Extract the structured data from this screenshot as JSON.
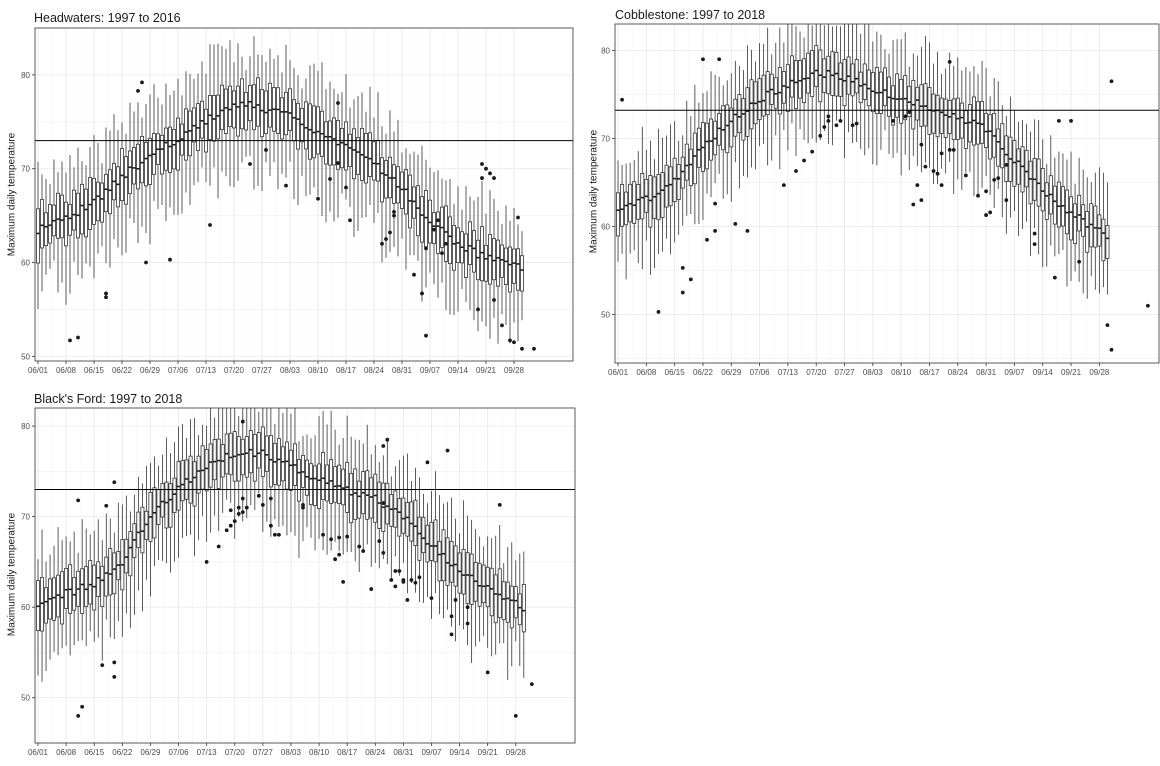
{
  "chart_data": [
    {
      "type": "box",
      "title": "Headwaters:  1997 to 2016",
      "ylabel": "Maximum daily temperature",
      "xlabel": "",
      "x_tick_labels": [
        "06/01",
        "06/08",
        "06/15",
        "06/22",
        "06/29",
        "07/06",
        "07/13",
        "07/20",
        "07/27",
        "08/03",
        "08/10",
        "08/17",
        "08/24",
        "08/31",
        "09/07",
        "09/14",
        "09/21",
        "09/28"
      ],
      "y_ticks": [
        50,
        60,
        70,
        80
      ],
      "ylim": [
        49.5,
        85
      ],
      "reference_line": 73,
      "grid": true,
      "days": 122,
      "median_profile": {
        "x_day": [
          0,
          7,
          14,
          21,
          28,
          35,
          42,
          49,
          56,
          63,
          70,
          77,
          84,
          91,
          98,
          105,
          112,
          121
        ],
        "median": [
          63.5,
          64.5,
          66.5,
          69,
          71.5,
          73,
          75,
          77,
          76.5,
          75.5,
          74,
          72.5,
          70.5,
          68,
          64.5,
          62,
          60.5,
          59.5
        ]
      },
      "outliers": [
        [
          8,
          51.7
        ],
        [
          10,
          52
        ],
        [
          17,
          56.3
        ],
        [
          17,
          56.7
        ],
        [
          25,
          78.3
        ],
        [
          26,
          79.2
        ],
        [
          27,
          60
        ],
        [
          33,
          60.3
        ],
        [
          43,
          64
        ],
        [
          53,
          70.5
        ],
        [
          57,
          72
        ],
        [
          62,
          68.2
        ],
        [
          70,
          66.8
        ],
        [
          73,
          68.9
        ],
        [
          75,
          70.6
        ],
        [
          75,
          77
        ],
        [
          77,
          68
        ],
        [
          78,
          64.5
        ],
        [
          86,
          62
        ],
        [
          87,
          62.5
        ],
        [
          88,
          63.2
        ],
        [
          89,
          65
        ],
        [
          89,
          65.4
        ],
        [
          94,
          58.7
        ],
        [
          96,
          56.7
        ],
        [
          97,
          52.2
        ],
        [
          97,
          61.5
        ],
        [
          99,
          63.5
        ],
        [
          100,
          64.5
        ],
        [
          101,
          61
        ],
        [
          102,
          62
        ],
        [
          110,
          55
        ],
        [
          111,
          69
        ],
        [
          111,
          70.5
        ],
        [
          112,
          70
        ],
        [
          113,
          69.5
        ],
        [
          114,
          69
        ],
        [
          114,
          56
        ],
        [
          116,
          53.3
        ],
        [
          118,
          51.7
        ],
        [
          119,
          51.5
        ],
        [
          120,
          64.8
        ],
        [
          121,
          50.8
        ],
        [
          124,
          50.8
        ]
      ]
    },
    {
      "type": "box",
      "title": "Cobblestone:  1997 to 2018",
      "ylabel": "Maximum daily temperature",
      "xlabel": "",
      "x_tick_labels": [
        "06/01",
        "06/08",
        "06/15",
        "06/22",
        "06/29",
        "07/06",
        "07/13",
        "07/20",
        "07/27",
        "08/03",
        "08/10",
        "08/17",
        "08/24",
        "08/31",
        "09/07",
        "09/14",
        "09/21",
        "09/28"
      ],
      "y_ticks": [
        50,
        60,
        70,
        80
      ],
      "ylim": [
        44.5,
        83
      ],
      "reference_line": 73.2,
      "grid": true,
      "days": 122,
      "median_profile": {
        "x_day": [
          0,
          7,
          14,
          21,
          28,
          35,
          42,
          49,
          56,
          63,
          70,
          77,
          84,
          91,
          98,
          105,
          112,
          121
        ],
        "median": [
          62,
          63,
          65,
          69,
          72,
          74.5,
          76,
          77.5,
          77,
          75.5,
          74.5,
          73.5,
          72.5,
          71,
          67.5,
          64,
          61.5,
          59
        ]
      },
      "outliers": [
        [
          1,
          74.4
        ],
        [
          10,
          50.3
        ],
        [
          16,
          52.5
        ],
        [
          16,
          55.3
        ],
        [
          18,
          54
        ],
        [
          21,
          79
        ],
        [
          22,
          58.5
        ],
        [
          24,
          62.6
        ],
        [
          24,
          59.5
        ],
        [
          25,
          79
        ],
        [
          29,
          60.3
        ],
        [
          32,
          59.5
        ],
        [
          41,
          64.7
        ],
        [
          44,
          66.3
        ],
        [
          46,
          67.5
        ],
        [
          48,
          68.5
        ],
        [
          50,
          70.3
        ],
        [
          51,
          71.3
        ],
        [
          52,
          72
        ],
        [
          52,
          72.5
        ],
        [
          54,
          71.5
        ],
        [
          55,
          72
        ],
        [
          58,
          71.5
        ],
        [
          59,
          71.7
        ],
        [
          68,
          72
        ],
        [
          71,
          72.5
        ],
        [
          72,
          73
        ],
        [
          73,
          62.5
        ],
        [
          74,
          64.7
        ],
        [
          75,
          63
        ],
        [
          75,
          69.3
        ],
        [
          76,
          66.8
        ],
        [
          78,
          66.3
        ],
        [
          79,
          66
        ],
        [
          80,
          64.7
        ],
        [
          80,
          68.3
        ],
        [
          82,
          68.7
        ],
        [
          82,
          78.7
        ],
        [
          83,
          68.7
        ],
        [
          86,
          65.8
        ],
        [
          89,
          63.5
        ],
        [
          91,
          61.3
        ],
        [
          91,
          64
        ],
        [
          92,
          61.6
        ],
        [
          93,
          65.3
        ],
        [
          94,
          65.5
        ],
        [
          96,
          63
        ],
        [
          96,
          67
        ],
        [
          103,
          58
        ],
        [
          103,
          59.2
        ],
        [
          108,
          54.2
        ],
        [
          109,
          72
        ],
        [
          112,
          72
        ],
        [
          114,
          56
        ],
        [
          121,
          48.8
        ],
        [
          122,
          46
        ],
        [
          122,
          76.5
        ],
        [
          131,
          51
        ]
      ]
    },
    {
      "type": "box",
      "title": "Black's Ford:  1997 to 2018",
      "ylabel": "Maximum daily temperature",
      "xlabel": "",
      "x_tick_labels": [
        "06/01",
        "06/08",
        "06/15",
        "06/22",
        "06/29",
        "07/06",
        "07/13",
        "07/20",
        "07/27",
        "08/03",
        "08/10",
        "08/17",
        "08/24",
        "08/31",
        "09/07",
        "09/14",
        "09/21",
        "09/28"
      ],
      "y_ticks": [
        50,
        60,
        70,
        80
      ],
      "ylim": [
        45,
        82
      ],
      "reference_line": 73,
      "grid": true,
      "days": 122,
      "median_profile": {
        "x_day": [
          0,
          7,
          14,
          21,
          28,
          35,
          42,
          49,
          56,
          63,
          70,
          77,
          84,
          91,
          98,
          105,
          112,
          121
        ],
        "median": [
          60,
          61.5,
          62.5,
          65,
          70,
          73,
          75.5,
          77,
          77,
          75.5,
          74,
          73,
          72,
          70,
          67,
          64,
          62,
          60
        ]
      },
      "outliers": [
        [
          10,
          48
        ],
        [
          11,
          49
        ],
        [
          10,
          71.8
        ],
        [
          17,
          71.2
        ],
        [
          16,
          53.6
        ],
        [
          19,
          53.9
        ],
        [
          19,
          52.3
        ],
        [
          19,
          73.8
        ],
        [
          42,
          65
        ],
        [
          45,
          66.7
        ],
        [
          47,
          68.5
        ],
        [
          48,
          69
        ],
        [
          48,
          70.7
        ],
        [
          49,
          69.5
        ],
        [
          50,
          70.3
        ],
        [
          50,
          71
        ],
        [
          51,
          70.5
        ],
        [
          51,
          72
        ],
        [
          51,
          80.5
        ],
        [
          52,
          71
        ],
        [
          55,
          72.3
        ],
        [
          56,
          71.3
        ],
        [
          58,
          69
        ],
        [
          58,
          72
        ],
        [
          59,
          68
        ],
        [
          60,
          68
        ],
        [
          66,
          71
        ],
        [
          66,
          71.3
        ],
        [
          71,
          68
        ],
        [
          73,
          67.5
        ],
        [
          74,
          65.3
        ],
        [
          75,
          65.8
        ],
        [
          75,
          67.7
        ],
        [
          76,
          62.8
        ],
        [
          77,
          67.8
        ],
        [
          80,
          66.7
        ],
        [
          81,
          66.2
        ],
        [
          83,
          62
        ],
        [
          85,
          67.3
        ],
        [
          86,
          66
        ],
        [
          86,
          71.5
        ],
        [
          86,
          77.8
        ],
        [
          87,
          78.5
        ],
        [
          88,
          63
        ],
        [
          89,
          62.3
        ],
        [
          89,
          64
        ],
        [
          90,
          64
        ],
        [
          91,
          62.8
        ],
        [
          91,
          63
        ],
        [
          92,
          60.8
        ],
        [
          93,
          63
        ],
        [
          94,
          62.7
        ],
        [
          95,
          63.3
        ],
        [
          97,
          76
        ],
        [
          98,
          61
        ],
        [
          103,
          57
        ],
        [
          103,
          59
        ],
        [
          104,
          60.8
        ],
        [
          102,
          77.3
        ],
        [
          107,
          58.2
        ],
        [
          107,
          60
        ],
        [
          112,
          52.8
        ],
        [
          115,
          71.3
        ],
        [
          119,
          48
        ],
        [
          123,
          51.5
        ]
      ]
    }
  ]
}
